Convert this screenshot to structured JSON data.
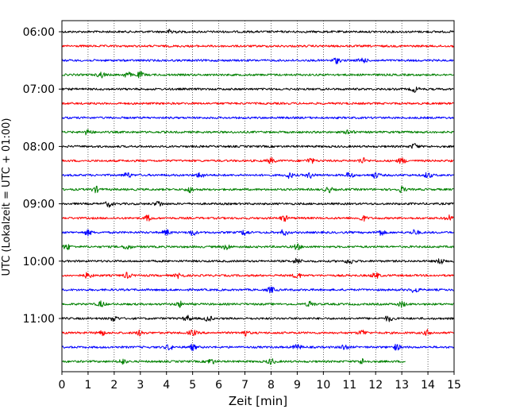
{
  "chart_data": {
    "type": "line",
    "subtype": "helicorder-seismogram",
    "xlabel": "Zeit  [min]",
    "ylabel": "UTC (Lokalzeit = UTC + 01:00)",
    "xlim": [
      0,
      15
    ],
    "x_ticks": [
      "0",
      "1",
      "2",
      "3",
      "4",
      "5",
      "6",
      "7",
      "8",
      "9",
      "10",
      "11",
      "12",
      "13",
      "14",
      "15"
    ],
    "grid": "vertical dotted at each minute",
    "line_minutes_per_row": 15,
    "y_tick_labels": [
      {
        "label": "06:00",
        "row": 0
      },
      {
        "label": "07:00",
        "row": 4
      },
      {
        "label": "08:00",
        "row": 8
      },
      {
        "label": "09:00",
        "row": 12
      },
      {
        "label": "10:00",
        "row": 16
      },
      {
        "label": "11:00",
        "row": 20
      }
    ],
    "color_cycle": [
      "#000000",
      "#ff0000",
      "#0000ff",
      "#008000"
    ],
    "rows": [
      {
        "start": "06:00",
        "end_min": 15,
        "bursts": [
          4.2
        ]
      },
      {
        "start": "06:15",
        "end_min": 15,
        "bursts": []
      },
      {
        "start": "06:30",
        "end_min": 15,
        "bursts": [
          10.5,
          11.5
        ]
      },
      {
        "start": "06:45",
        "end_min": 15,
        "bursts": [
          1.5,
          2.5,
          3.0
        ]
      },
      {
        "start": "07:00",
        "end_min": 15,
        "bursts": [
          13.5
        ]
      },
      {
        "start": "07:15",
        "end_min": 15,
        "bursts": []
      },
      {
        "start": "07:30",
        "end_min": 15,
        "bursts": []
      },
      {
        "start": "07:45",
        "end_min": 15,
        "bursts": [
          1.0,
          11.0
        ]
      },
      {
        "start": "08:00",
        "end_min": 15,
        "bursts": [
          13.5
        ]
      },
      {
        "start": "08:15",
        "end_min": 15,
        "bursts": [
          8.0,
          9.5,
          11.5,
          13.0
        ]
      },
      {
        "start": "08:30",
        "end_min": 15,
        "bursts": [
          2.5,
          5.3,
          8.7,
          9.5,
          11.0,
          12.0,
          14.0
        ]
      },
      {
        "start": "08:45",
        "end_min": 15,
        "bursts": [
          1.3,
          4.9,
          10.2,
          13.0
        ]
      },
      {
        "start": "09:00",
        "end_min": 15,
        "bursts": [
          1.8,
          3.7
        ]
      },
      {
        "start": "09:15",
        "end_min": 15,
        "bursts": [
          3.3,
          8.5,
          11.5,
          14.8
        ]
      },
      {
        "start": "09:30",
        "end_min": 15,
        "bursts": [
          1.0,
          4.0,
          5.0,
          7.0,
          8.5,
          12.2,
          13.5
        ]
      },
      {
        "start": "09:45",
        "end_min": 15,
        "bursts": [
          0.2,
          2.5,
          6.3,
          9.0
        ]
      },
      {
        "start": "10:00",
        "end_min": 15,
        "bursts": [
          9.0,
          11.0,
          14.5
        ]
      },
      {
        "start": "10:15",
        "end_min": 15,
        "bursts": [
          1.0,
          2.5,
          4.5,
          9.0,
          12.0
        ]
      },
      {
        "start": "10:30",
        "end_min": 15,
        "bursts": [
          8.0,
          13.5
        ]
      },
      {
        "start": "10:45",
        "end_min": 15,
        "bursts": [
          1.5,
          4.5,
          9.5,
          13.0
        ]
      },
      {
        "start": "11:00",
        "end_min": 15,
        "bursts": [
          2.0,
          4.8,
          5.6,
          12.5
        ]
      },
      {
        "start": "11:15",
        "end_min": 15,
        "bursts": [
          1.5,
          3.0,
          5.0,
          7.0,
          11.5,
          14.0
        ]
      },
      {
        "start": "11:30",
        "end_min": 15,
        "bursts": [
          4.1,
          5.0,
          9.0,
          10.8,
          12.8
        ]
      },
      {
        "start": "11:45",
        "end_min": 13.15,
        "bursts": [
          2.3,
          5.7,
          8.0,
          11.5
        ]
      }
    ]
  }
}
